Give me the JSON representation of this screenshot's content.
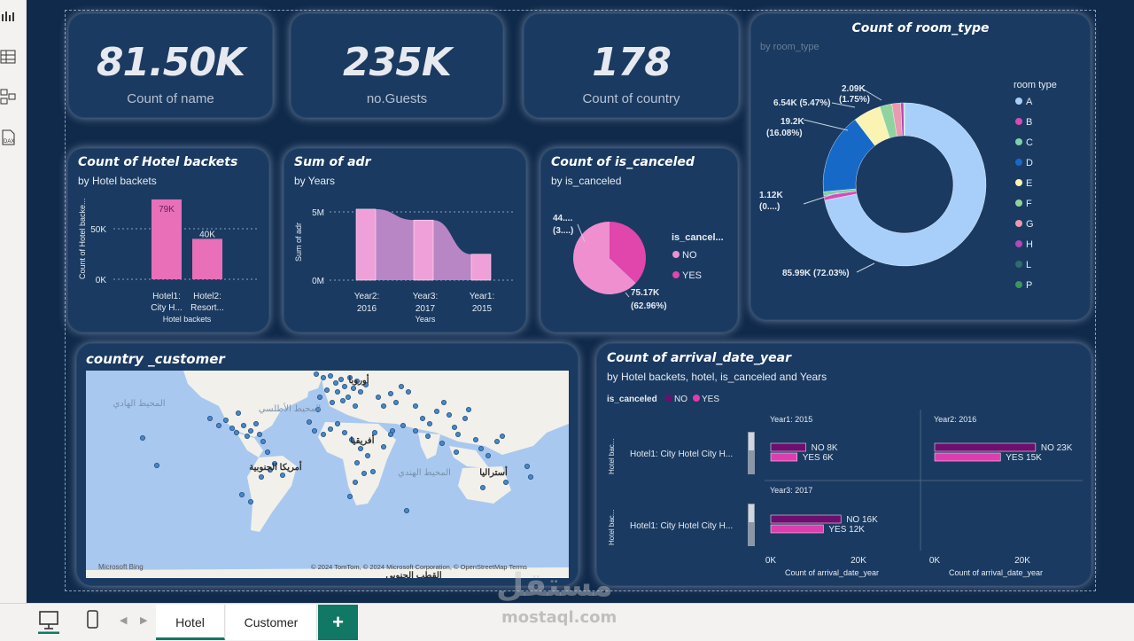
{
  "kpis": [
    {
      "value": "81.50K",
      "label": "Count of name"
    },
    {
      "value": "235K",
      "label": "no.Guests"
    },
    {
      "value": "178",
      "label": "Count of country"
    }
  ],
  "hotel_backets": {
    "title": "Count of Hotel backets",
    "subtitle": "by Hotel backets",
    "chart_data": {
      "type": "bar",
      "categories": [
        "Hotel1: City H...",
        "Hotel2: Resort..."
      ],
      "values": [
        79,
        40
      ],
      "data_labels": [
        "79K",
        "40K"
      ],
      "yticks": [
        "50K",
        "0K"
      ],
      "xlabel": "Hotel backets",
      "ylabel": "Count of Hotel backe...",
      "color": "#e86fb8"
    }
  },
  "adr": {
    "title": "Sum of adr",
    "subtitle": "by Years",
    "chart_data": {
      "type": "bar",
      "categories": [
        "Year2: 2016",
        "Year3: 2017",
        "Year1: 2015"
      ],
      "values": [
        5.2,
        4.4,
        1.9
      ],
      "yticks": [
        "5M",
        "0M"
      ],
      "xlabel": "Years",
      "ylabel": "Sum of adr",
      "color": "#f0a0d8",
      "ribbon_color": "#b886c4"
    }
  },
  "canceled": {
    "title": "Count of is_canceled",
    "subtitle": "by is_canceled",
    "legend_title": "is_cancel...",
    "chart_data": {
      "type": "pie",
      "slices": [
        {
          "name": "NO",
          "value": 75.17,
          "label1": "75.17K",
          "label2": "(62.96%)",
          "color": "#ef8fd0"
        },
        {
          "name": "YES",
          "value": 44.2,
          "label1": "44....",
          "label2": "(3....)",
          "color": "#e046ab"
        }
      ]
    }
  },
  "room_type": {
    "title": "Count of room_type",
    "subtitle": "by room_type",
    "legend_title": "room type",
    "chart_data": {
      "type": "pie",
      "slices": [
        {
          "name": "A",
          "value": 85.99,
          "color": "#a8cffa"
        },
        {
          "name": "B",
          "value": 1.12,
          "color": "#d84ab8"
        },
        {
          "name": "C",
          "value": 0.9,
          "color": "#7fd0a6"
        },
        {
          "name": "D",
          "value": 19.2,
          "color": "#1769c8"
        },
        {
          "name": "E",
          "value": 6.54,
          "color": "#fbf3b2"
        },
        {
          "name": "F",
          "value": 2.9,
          "color": "#8fd49e"
        },
        {
          "name": "G",
          "value": 2.09,
          "color": "#e99ab0"
        },
        {
          "name": "H",
          "value": 0.7,
          "color": "#b547b6"
        },
        {
          "name": "L",
          "value": 0.1,
          "color": "#2e6c6e"
        },
        {
          "name": "P",
          "value": 0.1,
          "color": "#39985b"
        }
      ],
      "labels": [
        {
          "l1": "85.99K (72.03%)",
          "l2": ""
        },
        {
          "l1": "19.2K",
          "l2": "(16.08%)"
        },
        {
          "l1": "6.54K (5.47%)",
          "l2": ""
        },
        {
          "l1": "2.09K",
          "l2": "(1.75%)"
        },
        {
          "l1": "1.12K",
          "l2": "(0....)"
        }
      ]
    }
  },
  "country": {
    "title": "country _customer",
    "places": [
      "المحيط الهادي",
      "المحيط الأطلسي",
      "أوروبا",
      "أفريقيا",
      "أمريكا الجنوبية",
      "المحيط الهندي",
      "أستراليا",
      "القطب الجنوبي"
    ],
    "attribution": "© 2024 TomTom, © 2024 Microsoft Corporation, © OpenStreetMap Terms",
    "bing": "Microsoft Bing"
  },
  "arrival": {
    "title": "Count of arrival_date_year",
    "subtitle": "by Hotel backets, hotel, is_canceled and Years",
    "legend_title": "is_canceled",
    "legend": [
      {
        "name": "NO",
        "color": "#6d0f6f"
      },
      {
        "name": "YES",
        "color": "#de3db0"
      }
    ],
    "row_label": "Hotel1: City Hotel City H...",
    "axis_label": "Hotel bac...",
    "xlabel": "Count of arrival_date_year",
    "chart_data": {
      "type": "bar",
      "panels": [
        {
          "name": "Year1: 2015",
          "values": [
            {
              "name": "NO",
              "value": 8,
              "label": "NO 8K"
            },
            {
              "name": "YES",
              "value": 6,
              "label": "YES 6K"
            }
          ],
          "ticks": [
            "0K",
            "20K"
          ]
        },
        {
          "name": "Year2: 2016",
          "values": [
            {
              "name": "NO",
              "value": 23,
              "label": "NO 23K"
            },
            {
              "name": "YES",
              "value": 15,
              "label": "YES 15K"
            }
          ],
          "ticks": [
            "0K",
            "20K"
          ]
        },
        {
          "name": "Year3: 2017",
          "values": [
            {
              "name": "NO",
              "value": 16,
              "label": "NO 16K"
            },
            {
              "name": "YES",
              "value": 12,
              "label": "YES 12K"
            }
          ],
          "ticks": [
            "0K",
            "20K"
          ]
        }
      ]
    }
  },
  "tabs": [
    "Hotel",
    "Customer"
  ],
  "add_tab": "+",
  "watermark": "مستقل",
  "watermark2": "mostaql.com"
}
